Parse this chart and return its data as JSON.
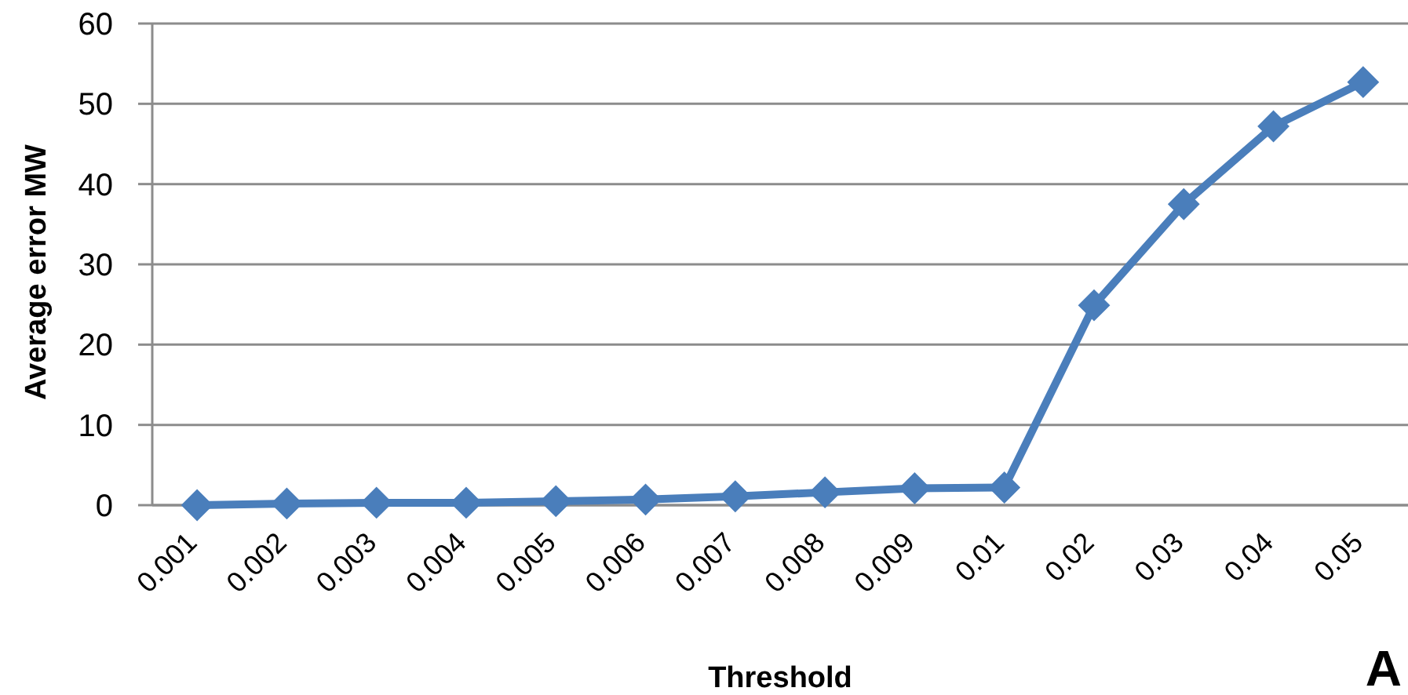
{
  "chart_data": {
    "type": "line",
    "xlabel": "Threshold",
    "ylabel": "Average error MW",
    "categories": [
      "0.001",
      "0.002",
      "0.003",
      "0.004",
      "0.005",
      "0.006",
      "0.007",
      "0.008",
      "0.009",
      "0.01",
      "0.02",
      "0.03",
      "0.04",
      "0.05"
    ],
    "series": [
      {
        "color": "#4a7ebb",
        "values": [
          0,
          0.2,
          0.3,
          0.3,
          0.5,
          0.7,
          1.1,
          1.6,
          2.1,
          2.2,
          24.9,
          37.5,
          47.2,
          52.7
        ]
      }
    ],
    "ylim": [
      0,
      60
    ],
    "yticks": [
      0,
      10,
      20,
      30,
      40,
      50,
      60
    ],
    "grid": "y",
    "marker": "diamond",
    "line_style": "solid",
    "annotations": [
      "A"
    ]
  }
}
